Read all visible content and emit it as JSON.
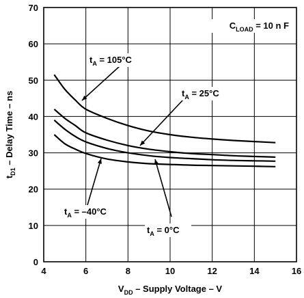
{
  "chart_data": {
    "type": "line",
    "title": "",
    "xlabel": {
      "main": "V",
      "sub": "DD",
      "rest": " – Supply Voltage – V"
    },
    "ylabel": {
      "main": "t",
      "sub": "D1",
      "rest": " – Delay Time – ns"
    },
    "xlim": [
      4,
      16
    ],
    "ylim": [
      0,
      70
    ],
    "xticks": [
      4,
      6,
      8,
      10,
      12,
      14,
      16
    ],
    "yticks": [
      0,
      10,
      20,
      30,
      40,
      50,
      60,
      70
    ],
    "grid": true,
    "condition": {
      "main": "C",
      "sub": "LOAD",
      "rest": " = 10 n F"
    },
    "series": [
      {
        "name": {
          "main": "t",
          "sub": "A",
          "rest": " = 105°C"
        },
        "x": [
          4.5,
          5,
          5.5,
          6,
          7,
          8,
          9,
          10,
          11,
          12,
          13,
          14,
          15
        ],
        "y": [
          51.5,
          47.5,
          44.5,
          42,
          39.5,
          37.5,
          36,
          35,
          34.3,
          33.8,
          33.4,
          33.1,
          32.8
        ]
      },
      {
        "name": {
          "main": "t",
          "sub": "A",
          "rest": " = 25°C"
        },
        "x": [
          4.5,
          5,
          5.5,
          6,
          7,
          8,
          9,
          10,
          11,
          12,
          13,
          14,
          15
        ],
        "y": [
          42,
          39.5,
          37.5,
          35.5,
          33.5,
          32,
          31,
          30.3,
          29.8,
          29.5,
          29.2,
          29,
          28.8
        ]
      },
      {
        "name": {
          "main": "t",
          "sub": "A",
          "rest": " = 0°C"
        },
        "x": [
          4.5,
          5,
          5.5,
          6,
          7,
          8,
          9,
          10,
          11,
          12,
          13,
          14,
          15
        ],
        "y": [
          39,
          36.5,
          34.5,
          33,
          31.2,
          30,
          29.2,
          28.7,
          28.4,
          28.1,
          27.9,
          27.8,
          27.7
        ]
      },
      {
        "name": {
          "main": "t",
          "sub": "A",
          "rest": " = –40°C"
        },
        "x": [
          4.5,
          5,
          5.5,
          6,
          7,
          8,
          9,
          10,
          11,
          12,
          13,
          14,
          15
        ],
        "y": [
          35,
          32.5,
          31,
          29.8,
          28.3,
          27.5,
          27,
          26.8,
          26.6,
          26.5,
          26.4,
          26.3,
          26.2
        ]
      }
    ]
  }
}
